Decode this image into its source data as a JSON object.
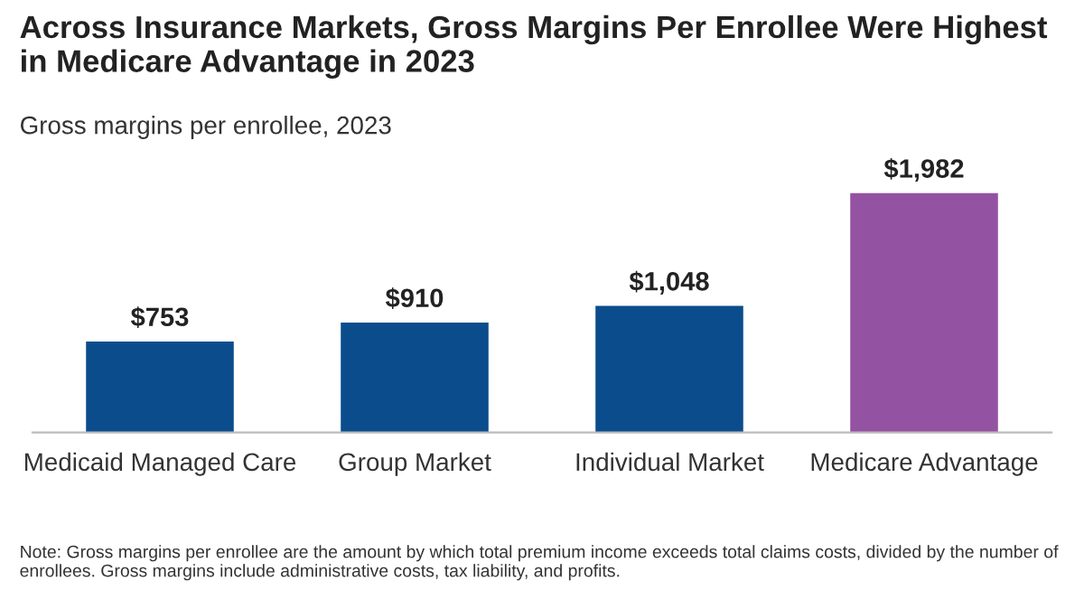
{
  "chart_data": {
    "type": "bar",
    "title": "Across Insurance Markets, Gross Margins Per Enrollee Were Highest in Medicare Advantage in 2023",
    "subtitle": "Gross margins per enrollee, 2023",
    "categories": [
      "Medicaid Managed Care",
      "Group Market",
      "Individual Market",
      "Medicare Advantage"
    ],
    "values": [
      753,
      910,
      1048,
      1982
    ],
    "colors": [
      "#0b4d8c",
      "#0b4d8c",
      "#0b4d8c",
      "#9452a2"
    ],
    "value_labels": [
      "$753",
      "$910",
      "$1,048",
      "$1,982"
    ],
    "annotations": [
      "Note: Gross margins per enrollee are the amount by which total premium income exceeds total claims costs, divided by the number of enrollees. Gross margins include administrative costs, tax liability, and profits."
    ],
    "legend": false
  }
}
